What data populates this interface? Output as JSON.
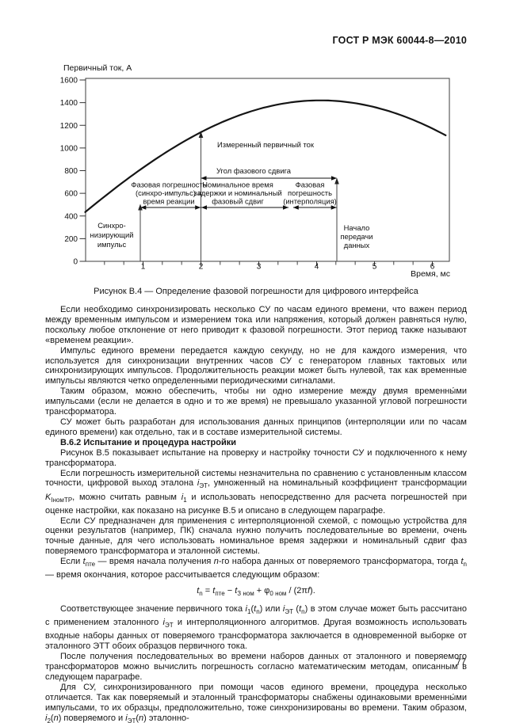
{
  "page": {
    "header": "ГОСТ Р МЭК 60044-8—2010",
    "page_number": "77"
  },
  "figure": {
    "caption": "Рисунок В.4 — Определение фазовой погрешности для цифрового интерфейса",
    "ylabel": "Первичный ток, А",
    "xlabel": "Время, мс",
    "labels": {
      "measured": "Измеренный первичный ток",
      "angle": "Угол фазового сдвига",
      "sync_err": [
        "Фазовая погрешность",
        "(синхро-импульс) =",
        "время реакции"
      ],
      "nominal": [
        "Номинальное время",
        "задержки и номинальный",
        "фазовый сдвиг"
      ],
      "interp": [
        "Фазовая",
        "погрешность",
        "(интерполяция)"
      ],
      "sync_pulse": [
        "Синхро-",
        "низирующий",
        "импульс"
      ],
      "data_start": [
        "Начало",
        "передачи",
        "данных"
      ]
    }
  },
  "chart_data": {
    "type": "line",
    "title": "Рисунок В.4 — Определение фазовой погрешности для цифрового интерфейса",
    "xlabel": "Время, мс",
    "ylabel": "Первичный ток, А",
    "xlim": [
      0,
      6.29
    ],
    "ylim": [
      0,
      1600
    ],
    "x_ticks": [
      1,
      2,
      3,
      4,
      5,
      6
    ],
    "x_minor_tick_step": 0.3333,
    "y_ticks": [
      0,
      200,
      400,
      600,
      800,
      1000,
      1200,
      1400,
      1600
    ],
    "grid": false,
    "legend": null,
    "series": [
      {
        "name": "Измеренный первичный ток",
        "model": "sinusoid",
        "amplitude_A": 1420,
        "omega_rad_per_ms": 0.31,
        "phase_rad": 0.311,
        "t_range_ms": [
          0,
          6.29
        ],
        "sample_points": [
          [
            0,
            434
          ],
          [
            1,
            826
          ],
          [
            2,
            1138
          ],
          [
            3,
            1343
          ],
          [
            4,
            1420
          ],
          [
            4.06,
            1420
          ],
          [
            5,
            1361
          ],
          [
            6,
            1170
          ],
          [
            6.29,
            1095
          ]
        ]
      }
    ],
    "events": [
      {
        "label": "Синхронизирующий импульс",
        "t_ms": 0.95
      },
      {
        "label": "Измерение (синхро-импульс), время реакции",
        "t_ms": 2.0
      },
      {
        "label": "Начало передачи данных",
        "t_ms": 4.35
      }
    ],
    "annotations": [
      "Измеренный первичный ток",
      "Угол фазового сдвига",
      "Фазовая погрешность (синхро-импульс) = время реакции",
      "Номинальное время задержки и номинальный фазовый сдвиг",
      "Фазовая погрешность (интерполяция)"
    ]
  },
  "body": {
    "blocks": [
      {
        "type": "p",
        "text": "Если необходимо синхронизировать несколько СУ по часам единого времени, что важен период между временным импульсом и измерением тока или напряжения, который должен равняться нулю, поскольку любое отклонение от него приводит к фазовой погрешности. Этот период также называют «временем реакции»."
      },
      {
        "type": "p",
        "text": "Импульс единого времени передается каждую секунду, но не для каждого измерения, что используется для синхронизации внутренних часов СУ с генератором главных тактовых или синхронизирующих импульсов. Продолжительность реакции может быть нулевой, так как временные импульсы являются четко определенными периодическими сигналами."
      },
      {
        "type": "p",
        "text": "Таким образом, можно обеспечить, чтобы ни одно измерение между двумя временны́ми импульсами (если не делается в одно и то же время) не превышало указанной угловой погрешности трансформатора."
      },
      {
        "type": "p",
        "text": "СУ может быть разработан для использования данных принципов (интерполяции или по часам единого времени) как отдельно, так и в составе измерительной системы."
      },
      {
        "type": "h",
        "text": "В.6.2 Испытание и процедура настройки"
      },
      {
        "type": "p",
        "text": "Рисунок В.5 показывает испытание на проверку и настройку точности СУ и подключенного к нему трансформатора."
      },
      {
        "type": "p",
        "text": "Если погрешность измерительной системы незначительна по сравнению с установленным классом точности, цифровой выход эталона *i*_{ЭТ}, умноженный на номинальный коэффициент трансформации *K*_{IномТР}, можно считать равным *i*_{1} и использовать непосредственно для расчета погрешностей при оценке настройки, как показано на рисунке В.5 и описано в следующем параграфе."
      },
      {
        "type": "p",
        "text": "Если СУ предназначен для применения с интерполяционной схемой, с помощью устройства для оценки результатов (например, ПК) сначала нужно получить последовательные во времени, очень точные данные, для чего использовать номинальное время задержки и номинальный сдвиг фаз поверяемого трансформатора и эталонной системы."
      },
      {
        "type": "p",
        "text": "Если *t*_{пте} — время начала получения *n*-го набора данных от поверяемого трансформатора, тогда *t*_{n} — время окончания, которое рассчитывается следующим образом:"
      },
      {
        "type": "f",
        "text": "*t*_{n} = *t*_{пте} − *t*_{З ном} + φ_{0 ном} / (2π*f*)."
      },
      {
        "type": "p",
        "text": "Соответствующее значение первичного тока *i*_{1}(*t*_{n}) или *i*_{ЭТ} (*t*_{n}) в этом случае может быть рассчитано с применением эталонного *i*_{ЭТ} и интерполяционного алгоритмов. Другая возможность использовать входные наборы данных от поверяемого трансформатора заключается в одновременной выборке от эталонного ЭТТ обоих образцов первичного тока."
      },
      {
        "type": "p",
        "text": "После получения последовательных во времени наборов данных от эталонного и поверяемого трансформаторов можно вычислить погрешность согласно математическим методам, описанным в следующем параграфе."
      },
      {
        "type": "p",
        "text": "Для СУ, синхронизированного при помощи часов единого времени, процедура несколько отличается. Так как поверяемый и эталонный трансформаторы снабжены одинаковыми временны́ми импульсами, то их образцы, предположительно, тоже синхронизированы во времени. Таким образом, *i*_{2}(*n*) поверяемого и *i*_{ЭТ}(*n*) эталонно-"
      }
    ]
  }
}
